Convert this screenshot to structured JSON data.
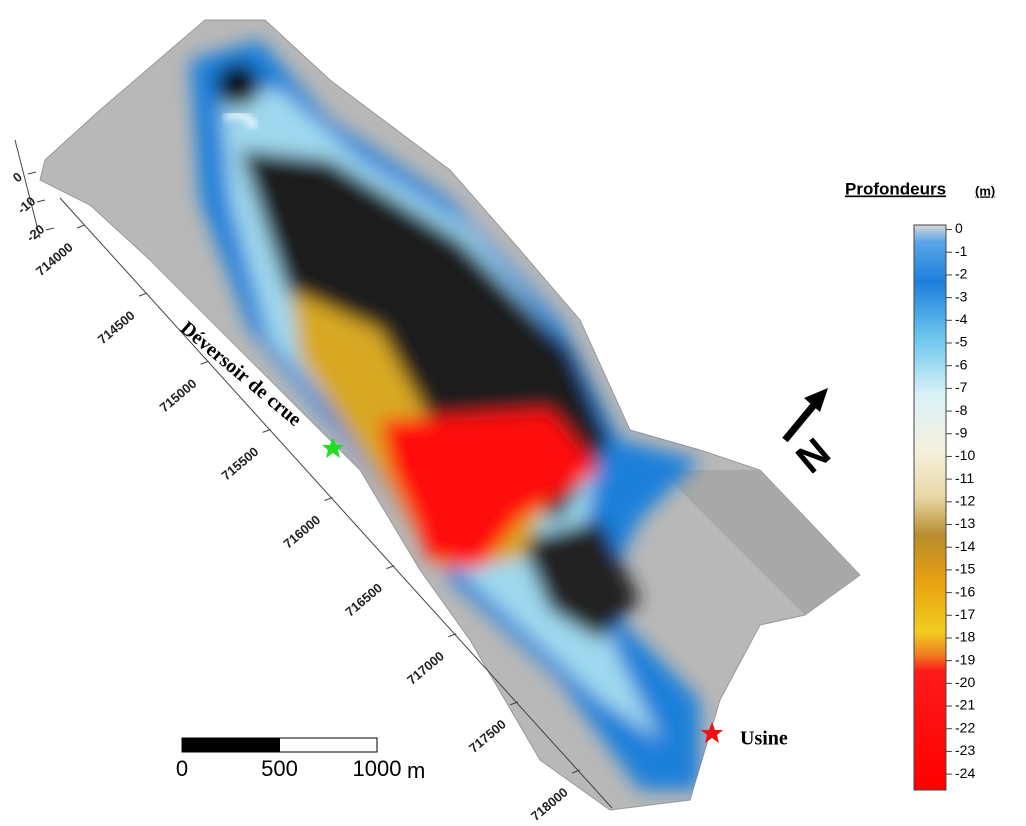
{
  "legend": {
    "title": "Profondeurs",
    "unit": "(m)",
    "ticks": [
      0,
      -1,
      -2,
      -3,
      -4,
      -5,
      -6,
      -7,
      -8,
      -9,
      -10,
      -11,
      -12,
      -13,
      -14,
      -15,
      -16,
      -17,
      -18,
      -19,
      -20,
      -21,
      -22,
      -23,
      -24
    ],
    "range": [
      0.2,
      -24.7
    ]
  },
  "axes": {
    "northing_ticks": [
      714000,
      714500,
      715000,
      715500,
      716000,
      716500,
      717000,
      717500,
      718000
    ],
    "depth_ticks": [
      0,
      -10,
      -20
    ]
  },
  "annotations": {
    "spillway": "Déversoir de crue",
    "plant": "Usine"
  },
  "scale_bar": {
    "ticks": [
      0,
      500,
      1000
    ],
    "unit": "m"
  },
  "north": "N"
}
